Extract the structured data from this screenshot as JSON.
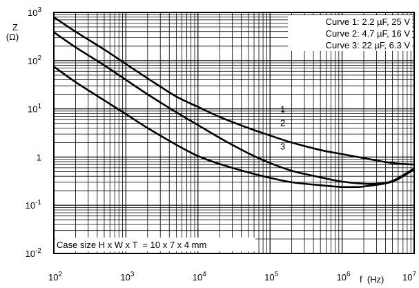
{
  "chart_data": {
    "type": "line",
    "x_scale": "log",
    "y_scale": "log",
    "xlim": [
      100,
      10000000
    ],
    "ylim": [
      0.01,
      1000
    ],
    "grid": true,
    "y_axis_label": {
      "main": "Z",
      "unit": "(Ω)"
    },
    "x_axis_label": "f  (Hz)",
    "x_ticks": [
      {
        "base": "10",
        "exp": "2",
        "value": 100
      },
      {
        "base": "10",
        "exp": "3",
        "value": 1000
      },
      {
        "base": "10",
        "exp": "4",
        "value": 10000
      },
      {
        "base": "10",
        "exp": "5",
        "value": 100000
      },
      {
        "base": "10",
        "exp": "6",
        "value": 1000000
      },
      {
        "base": "10",
        "exp": "7",
        "value": 10000000
      }
    ],
    "y_ticks": [
      {
        "base": "10",
        "exp": "3",
        "value": 1000
      },
      {
        "base": "10",
        "exp": "2",
        "value": 100
      },
      {
        "base": "10",
        "exp": "1",
        "value": 10
      },
      {
        "base": "1",
        "exp": "",
        "value": 1
      },
      {
        "base": "10",
        "exp": "-1",
        "value": 0.1
      },
      {
        "base": "10",
        "exp": "-2",
        "value": 0.01
      }
    ],
    "legend": {
      "placement": "top-right",
      "entries": [
        "Curve 1: 2.2 µF, 25 V",
        "Curve 2: 4.7 µF, 16 V",
        "Curve 3: 22 µF, 6.3 V"
      ]
    },
    "annotation": "Case size H x W x T  = 10 x 7 x 4 mm",
    "series": [
      {
        "label": "1",
        "label_at": [
          150000,
          10
        ],
        "x": [
          100,
          200,
          500,
          1000,
          2000,
          5000,
          10000,
          20000,
          50000,
          100000,
          200000,
          500000,
          1000000,
          2000000,
          5000000,
          10000000
        ],
        "y": [
          800,
          400,
          170,
          85,
          43,
          18,
          11,
          6.8,
          4.0,
          2.8,
          2.0,
          1.4,
          1.15,
          0.95,
          0.75,
          0.7
        ]
      },
      {
        "label": "2",
        "label_at": [
          150000,
          5.2
        ],
        "x": [
          100,
          200,
          500,
          1000,
          2000,
          5000,
          10000,
          20000,
          50000,
          100000,
          200000,
          500000,
          1000000,
          2000000,
          3000000,
          5000000,
          10000000
        ],
        "y": [
          390,
          190,
          80,
          40,
          20,
          8.5,
          4.6,
          2.5,
          1.2,
          0.75,
          0.52,
          0.38,
          0.31,
          0.28,
          0.28,
          0.32,
          0.58
        ]
      },
      {
        "label": "3",
        "label_at": [
          150000,
          1.7
        ],
        "x": [
          100,
          200,
          500,
          1000,
          2000,
          5000,
          10000,
          20000,
          50000,
          100000,
          200000,
          500000,
          1000000,
          1500000,
          2000000,
          5000000,
          10000000
        ],
        "y": [
          75,
          36,
          15,
          7.8,
          4.0,
          1.8,
          1.05,
          0.72,
          0.48,
          0.37,
          0.3,
          0.26,
          0.24,
          0.24,
          0.245,
          0.31,
          0.56
        ]
      }
    ]
  }
}
